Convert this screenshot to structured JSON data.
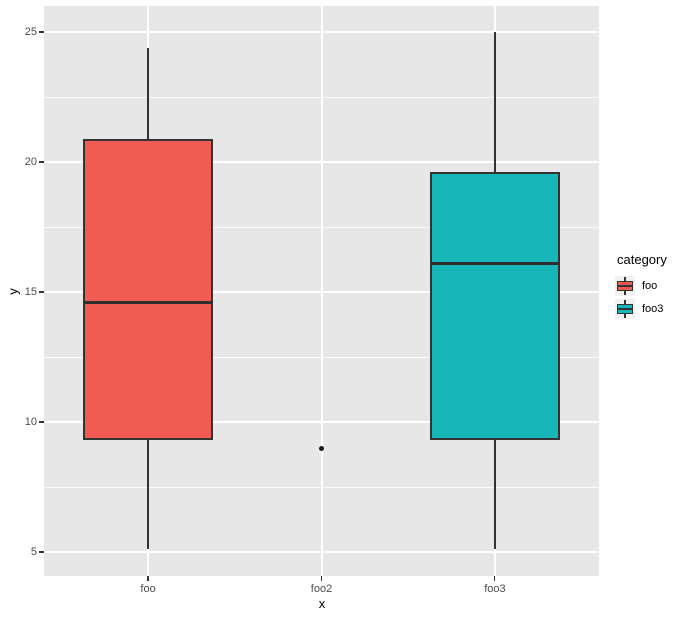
{
  "chart_data": {
    "type": "boxplot",
    "title": "",
    "xlabel": "x",
    "ylabel": "y",
    "categories": [
      "foo",
      "foo2",
      "foo3"
    ],
    "ylim": [
      4.08,
      26.0
    ],
    "y_major_ticks": [
      5,
      10,
      15,
      20,
      25
    ],
    "y_minor_gridlines": [
      7.5,
      12.5,
      17.5,
      22.5
    ],
    "grid": true,
    "legend": {
      "title": "category",
      "position": "right",
      "entries": [
        {
          "label": "foo",
          "color": "#F25B52"
        },
        {
          "label": "foo3",
          "color": "#17B6B9"
        }
      ]
    },
    "series": [
      {
        "category": "foo",
        "type": "box",
        "color": "#F25B52",
        "whisker_low": 5.1,
        "q1": 9.3,
        "median": 14.6,
        "q3": 20.9,
        "whisker_high": 24.4,
        "outliers": []
      },
      {
        "category": "foo2",
        "type": "point",
        "color": "#1A1A1A",
        "points": [
          9.0
        ]
      },
      {
        "category": "foo3",
        "type": "box",
        "color": "#17B6B9",
        "whisker_low": 5.1,
        "q1": 9.3,
        "median": 16.1,
        "q3": 19.6,
        "whisker_high": 25.0,
        "outliers": []
      }
    ],
    "box_width_fraction": 0.75,
    "style": {
      "panel_bg": "#E7E7E7",
      "grid_color": "#FFFFFF",
      "box_border": "#333333",
      "median_color": "#2E2E2E",
      "axis_text_color": "#4D4D4D",
      "axis_title_color": "#000000",
      "tick_color": "#333333",
      "legend_key_bg": "#F2F2F2",
      "legend_text_color": "#000000"
    }
  }
}
